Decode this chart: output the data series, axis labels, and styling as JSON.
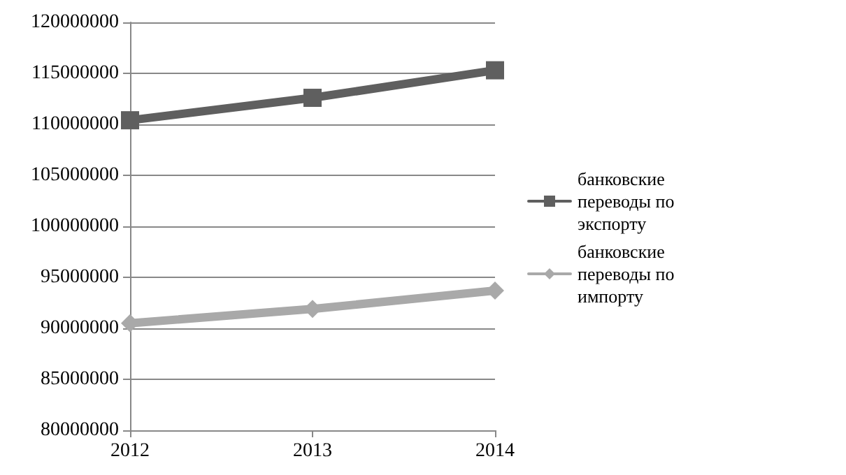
{
  "chart_data": {
    "type": "line",
    "x": [
      2012,
      2013,
      2014
    ],
    "xlim": [
      2012,
      2014
    ],
    "xticks": [
      2012,
      2013,
      2014
    ],
    "ylim": [
      80000000,
      120000000
    ],
    "yticks": [
      80000000,
      85000000,
      90000000,
      95000000,
      100000000,
      105000000,
      110000000,
      115000000,
      120000000
    ],
    "grid": "y",
    "legend": "right",
    "line_style": "solid",
    "series": [
      {
        "name": "банковские переводы по экспорту",
        "color": "#5f5f5f",
        "marker": "square",
        "values": [
          110400000,
          112600000,
          115300000
        ]
      },
      {
        "name": "банковские переводы по импорту",
        "color": "#a9a9a9",
        "marker": "diamond",
        "values": [
          90500000,
          91900000,
          93700000
        ]
      }
    ]
  }
}
